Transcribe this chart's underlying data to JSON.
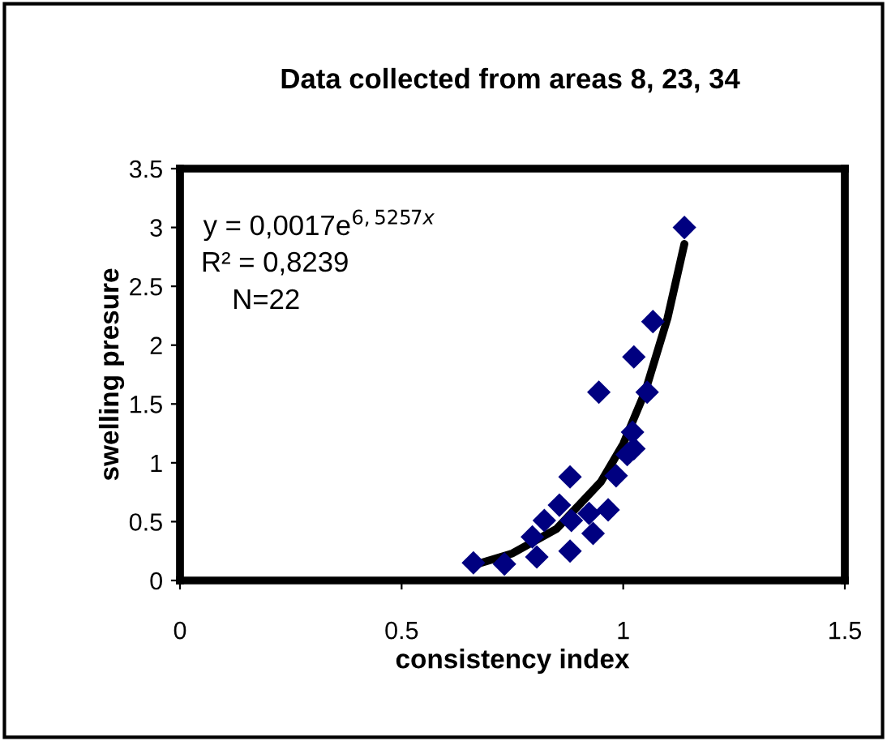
{
  "chart_data": {
    "type": "scatter",
    "title": "Data collected from areas 8, 23, 34",
    "xlabel": "consistency index",
    "ylabel": "swelling presure",
    "xlim": [
      0,
      1.5
    ],
    "xticks": [
      0,
      0.5,
      1,
      1.5
    ],
    "ylim": [
      0,
      3.5
    ],
    "yticks": [
      0,
      0.5,
      1,
      1.5,
      2,
      2.5,
      3,
      3.5
    ],
    "grid": false,
    "legend": false,
    "annotations": [
      "y = 0,0017e$^{6,5257x}$",
      "R² = 0,8239",
      "N=22"
    ],
    "series": [
      {
        "marker": "diamond",
        "color": "#000080",
        "x": [
          0.662,
          0.732,
          0.805,
          0.795,
          0.822,
          0.856,
          0.88,
          0.88,
          0.883,
          0.923,
          0.932,
          0.966,
          0.984,
          0.945,
          1.009,
          1.021,
          1.024,
          1.054,
          1.024,
          1.067,
          1.138
        ],
        "values": [
          0.15,
          0.14,
          0.2,
          0.37,
          0.51,
          0.64,
          0.88,
          0.25,
          0.51,
          0.57,
          0.4,
          0.6,
          0.89,
          1.6,
          1.07,
          1.26,
          1.12,
          1.6,
          1.9,
          2.2,
          3.0
        ]
      },
      {
        "type": "line",
        "marker": "none",
        "color": "#000000",
        "x": [
          0.662,
          0.75,
          0.85,
          0.95,
          1.0,
          1.05,
          1.1,
          1.138
        ],
        "values": [
          0.13,
          0.23,
          0.44,
          0.84,
          1.16,
          1.61,
          2.23,
          2.86
        ]
      }
    ]
  }
}
